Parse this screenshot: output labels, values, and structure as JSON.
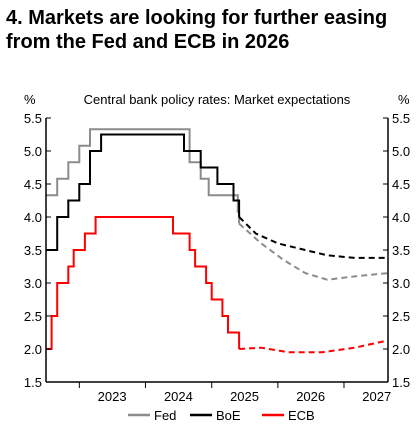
{
  "title_lines": [
    "4. Markets are looking for further easing",
    "from the Fed and ECB in 2026"
  ],
  "chart_data": {
    "type": "line",
    "subtitle": "Central bank policy rates: Market expectations",
    "left_unit": "%",
    "right_unit": "%",
    "ylim": [
      1.5,
      5.5
    ],
    "y_ticks": [
      "5.5",
      "5.0",
      "4.5",
      "4.0",
      "3.5",
      "3.0",
      "2.5",
      "2.0",
      "1.5"
    ],
    "x_labels": [
      "2023",
      "2024",
      "2025",
      "2026",
      "2027"
    ],
    "x_range": [
      "2022-07-01",
      "2027-09-01"
    ],
    "expectations_start": "2025-06-01",
    "legend": [
      "Fed",
      "BoE",
      "ECB"
    ],
    "series": [
      {
        "name": "Fed",
        "color": "#8c8c8c",
        "step": [
          [
            "2022-07-01",
            4.33
          ],
          [
            "2022-09-01",
            4.58
          ],
          [
            "2022-11-01",
            4.83
          ],
          [
            "2023-01-01",
            5.08
          ],
          [
            "2023-03-01",
            5.33
          ],
          [
            "2024-09-01",
            4.83
          ],
          [
            "2024-11-01",
            4.58
          ],
          [
            "2024-12-15",
            4.33
          ],
          [
            "2025-05-25",
            4.08
          ],
          [
            "2025-06-01",
            3.9
          ]
        ],
        "forecast": [
          [
            "2025-06-01",
            3.9
          ],
          [
            "2025-10-01",
            3.6
          ],
          [
            "2026-02-01",
            3.35
          ],
          [
            "2026-06-01",
            3.15
          ],
          [
            "2026-10-01",
            3.05
          ],
          [
            "2027-03-01",
            3.1
          ],
          [
            "2027-09-01",
            3.15
          ]
        ]
      },
      {
        "name": "BoE",
        "color": "#000000",
        "step": [
          [
            "2022-07-01",
            3.5
          ],
          [
            "2022-09-01",
            4.0
          ],
          [
            "2022-11-01",
            4.25
          ],
          [
            "2023-01-01",
            4.5
          ],
          [
            "2023-03-01",
            5.0
          ],
          [
            "2023-05-01",
            5.25
          ],
          [
            "2024-08-01",
            5.0
          ],
          [
            "2024-11-01",
            4.75
          ],
          [
            "2025-02-01",
            4.5
          ],
          [
            "2025-05-01",
            4.25
          ],
          [
            "2025-06-01",
            4.0
          ]
        ],
        "forecast": [
          [
            "2025-06-01",
            4.0
          ],
          [
            "2025-09-01",
            3.75
          ],
          [
            "2026-01-01",
            3.6
          ],
          [
            "2026-06-01",
            3.5
          ],
          [
            "2026-10-01",
            3.42
          ],
          [
            "2027-03-01",
            3.38
          ],
          [
            "2027-09-01",
            3.38
          ]
        ]
      },
      {
        "name": "ECB",
        "color": "#ff0000",
        "step": [
          [
            "2022-07-01",
            2.0
          ],
          [
            "2022-08-01",
            2.5
          ],
          [
            "2022-09-01",
            3.0
          ],
          [
            "2022-11-01",
            3.25
          ],
          [
            "2022-12-01",
            3.5
          ],
          [
            "2023-02-01",
            3.75
          ],
          [
            "2023-04-01",
            4.0
          ],
          [
            "2024-06-01",
            3.75
          ],
          [
            "2024-09-01",
            3.5
          ],
          [
            "2024-10-01",
            3.25
          ],
          [
            "2024-12-01",
            3.0
          ],
          [
            "2025-01-01",
            2.75
          ],
          [
            "2025-03-01",
            2.5
          ],
          [
            "2025-04-01",
            2.25
          ],
          [
            "2025-06-01",
            2.0
          ]
        ],
        "forecast": [
          [
            "2025-06-01",
            2.0
          ],
          [
            "2025-10-01",
            2.02
          ],
          [
            "2026-03-01",
            1.95
          ],
          [
            "2026-09-01",
            1.95
          ],
          [
            "2027-03-01",
            2.02
          ],
          [
            "2027-09-01",
            2.13
          ]
        ]
      }
    ]
  }
}
